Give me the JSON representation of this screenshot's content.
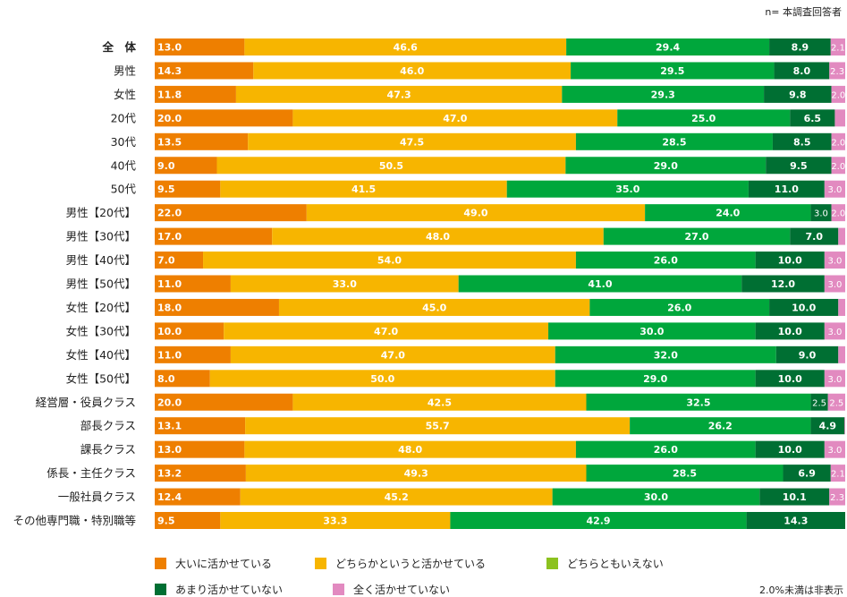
{
  "chart_data": {
    "type": "bar",
    "orientation": "horizontal",
    "stacked": true,
    "title": "",
    "sample_note": "n= 本調査回答者",
    "threshold_note": "2.0%未満は非表示",
    "label_threshold": 2.0,
    "xlim": [
      0,
      100
    ],
    "categories": [
      "全　体",
      "男性",
      "女性",
      "20代",
      "30代",
      "40代",
      "50代",
      "男性【20代】",
      "男性【30代】",
      "男性【40代】",
      "男性【50代】",
      "女性【20代】",
      "女性【30代】",
      "女性【40代】",
      "女性【50代】",
      "経営層・役員クラス",
      "部長クラス",
      "課長クラス",
      "係長・主任クラス",
      "一般社員クラス",
      "その他専門職・特別職等"
    ],
    "series": [
      {
        "name": "大いに活かせている",
        "color": "#ee7f00",
        "legend_color": "#ee7f00",
        "values": [
          13.0,
          14.3,
          11.8,
          20.0,
          13.5,
          9.0,
          9.5,
          22.0,
          17.0,
          7.0,
          11.0,
          18.0,
          10.0,
          11.0,
          8.0,
          20.0,
          13.1,
          13.0,
          13.2,
          12.4,
          9.5
        ]
      },
      {
        "name": "どちらかというと活かせている",
        "color": "#f7b500",
        "legend_color": "#f7b500",
        "values": [
          46.6,
          46.0,
          47.3,
          47.0,
          47.5,
          50.5,
          41.5,
          49.0,
          48.0,
          54.0,
          33.0,
          45.0,
          47.0,
          47.0,
          50.0,
          42.5,
          55.7,
          48.0,
          49.3,
          45.2,
          33.3
        ]
      },
      {
        "name": "どちらともいえない",
        "color": "#00a73c",
        "legend_color": "#8cc21f",
        "values": [
          29.4,
          29.5,
          29.3,
          25.0,
          28.5,
          29.0,
          35.0,
          24.0,
          27.0,
          26.0,
          41.0,
          26.0,
          30.0,
          32.0,
          29.0,
          32.5,
          26.2,
          26.0,
          28.5,
          30.0,
          42.9
        ]
      },
      {
        "name": "あまり活かせていない",
        "color": "#006f33",
        "legend_color": "#006f33",
        "values": [
          8.9,
          8.0,
          9.8,
          6.5,
          8.5,
          9.5,
          11.0,
          3.0,
          7.0,
          10.0,
          12.0,
          10.0,
          10.0,
          9.0,
          10.0,
          2.5,
          4.9,
          10.0,
          6.9,
          10.1,
          14.3
        ]
      },
      {
        "name": "全く活かせていない",
        "color": "#e28ac0",
        "legend_color": "#e28ac0",
        "values": [
          2.1,
          2.3,
          2.0,
          1.5,
          2.0,
          2.0,
          3.0,
          2.0,
          1.0,
          3.0,
          3.0,
          1.0,
          3.0,
          1.0,
          3.0,
          2.5,
          0.1,
          3.0,
          2.1,
          2.3,
          0.0
        ]
      }
    ]
  }
}
